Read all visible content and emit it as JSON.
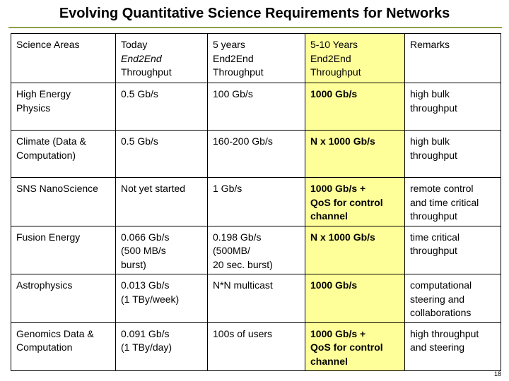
{
  "slide": {
    "title": "Evolving Quantitative Science Requirements for Networks",
    "page_number": "18"
  },
  "table": {
    "header": {
      "area": "Science Areas",
      "today_line1": "Today",
      "today_line2": "End2End",
      "today_line3": "Throughput",
      "five_line1": "5 years",
      "five_line2": "End2End",
      "five_line3": "Throughput",
      "ten_line1": "5-10 Years",
      "ten_line2": "End2End",
      "ten_line3": "Throughput",
      "remarks": "Remarks"
    },
    "rows": [
      {
        "area": [
          "High Energy",
          "Physics"
        ],
        "today": [
          "0.5 Gb/s"
        ],
        "five": [
          "100 Gb/s"
        ],
        "ten": [
          "1000 Gb/s"
        ],
        "remarks": [
          "high bulk",
          "throughput"
        ]
      },
      {
        "area": [
          "Climate (Data &",
          "Computation)"
        ],
        "today": [
          "0.5 Gb/s"
        ],
        "five": [
          "160-200 Gb/s"
        ],
        "ten": [
          "N x 1000 Gb/s"
        ],
        "remarks": [
          "high bulk",
          "throughput"
        ]
      },
      {
        "area": [
          "SNS NanoScience"
        ],
        "today": [
          "Not yet started"
        ],
        "five": [
          "1 Gb/s"
        ],
        "ten": [
          "1000 Gb/s +",
          "QoS for control",
          "channel"
        ],
        "remarks": [
          "remote control",
          "and time critical",
          "throughput"
        ]
      },
      {
        "area": [
          "Fusion Energy"
        ],
        "today": [
          "0.066 Gb/s",
          "(500 MB/s",
          "burst)"
        ],
        "five": [
          "0.198 Gb/s",
          "(500MB/",
          "20 sec. burst)"
        ],
        "ten": [
          "N x 1000 Gb/s"
        ],
        "remarks": [
          "time critical",
          "throughput"
        ]
      },
      {
        "area": [
          "Astrophysics"
        ],
        "today": [
          "0.013 Gb/s",
          "(1 TBy/week)"
        ],
        "five": [
          "N*N multicast"
        ],
        "ten": [
          "1000 Gb/s"
        ],
        "remarks": [
          "computational",
          "steering and",
          "collaborations"
        ]
      },
      {
        "area": [
          "Genomics Data &",
          "Computation"
        ],
        "today": [
          "0.091 Gb/s",
          "(1 TBy/day)"
        ],
        "five": [
          "100s of users"
        ],
        "ten": [
          "1000 Gb/s +",
          "QoS for control",
          "channel"
        ],
        "remarks": [
          "high throughput",
          "and steering"
        ]
      }
    ]
  }
}
